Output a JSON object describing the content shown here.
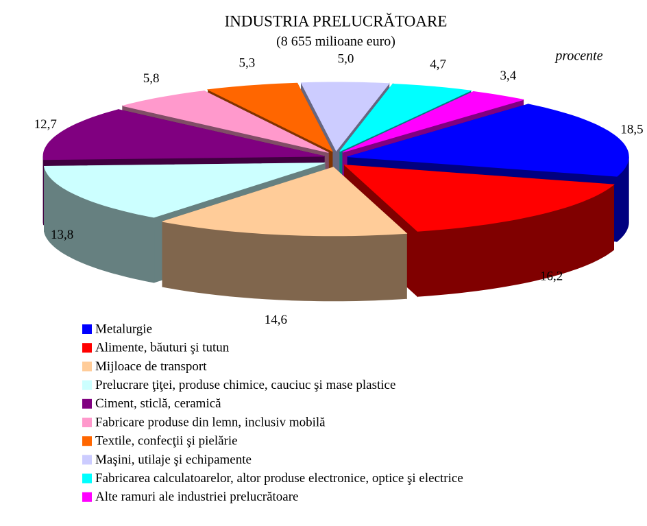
{
  "chart_data": {
    "type": "pie3d",
    "title": "INDUSTRIA PRELUCRĂTOARE",
    "subtitle": "(8 655 milioane euro)",
    "annotation": "procente",
    "categories": [
      "Metalurgie",
      "Alimente, băuturi şi tutun",
      "Mijloace de transport",
      "Prelucrare ţiţei, produse chimice, cauciuc şi mase plastice",
      "Ciment, sticlă, ceramică",
      "Fabricare produse din lemn, inclusiv mobilă",
      "Textile, confecţii şi pielărie",
      "Maşini, utilaje şi echipamente",
      "Fabricarea calculatoarelor, altor produse electronice, optice şi electrice",
      "Alte ramuri ale industriei prelucrătoare"
    ],
    "values": [
      18.5,
      16.2,
      14.6,
      13.8,
      12.7,
      5.8,
      5.3,
      5.0,
      4.7,
      3.4
    ],
    "value_labels": [
      "18,5",
      "16,2",
      "14,6",
      "13,8",
      "12,7",
      "5,8",
      "5,3",
      "5,0",
      "4,7",
      "3,4"
    ],
    "colors": [
      "#0000ff",
      "#ff0000",
      "#ffcc99",
      "#ccffff",
      "#800080",
      "#ff99cc",
      "#ff6600",
      "#ccccff",
      "#00ffff",
      "#ff00ff"
    ],
    "legend": "bottom"
  }
}
